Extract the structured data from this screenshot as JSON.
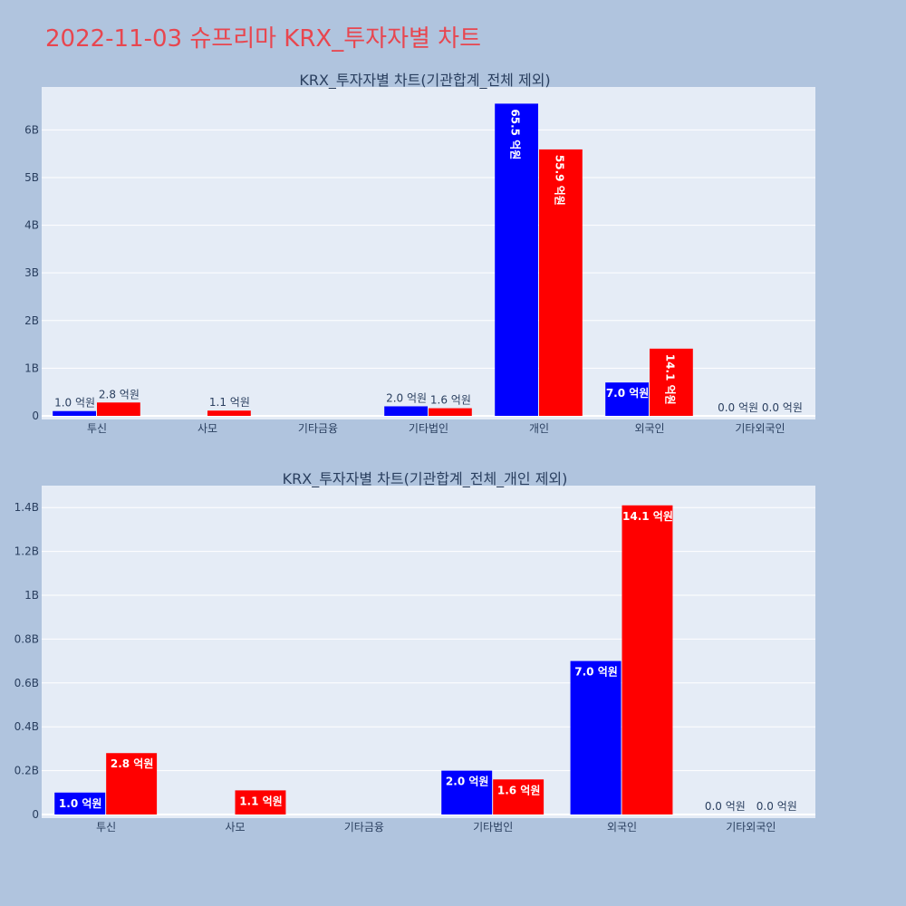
{
  "page": {
    "title": "2022-11-03 슈프리마 KRX_투자자별 차트",
    "colors": {
      "background": "#b0c4de",
      "plot_bg": "#e5ecf6",
      "title": "#e8464f",
      "sell": "#0000ff",
      "buy": "#ff0000"
    }
  },
  "chart_data": [
    {
      "type": "bar",
      "title": "KRX_투자자별 차트(기관합계_전체 제외)",
      "categories": [
        "투신",
        "사모",
        "기타금융",
        "기타법인",
        "개인",
        "외국인",
        "기타외국인"
      ],
      "series": [
        {
          "color": "#0000ff",
          "values": [
            100000000,
            0,
            0,
            200000000,
            6550000000,
            700000000,
            0
          ],
          "labels": [
            "1.0 억원",
            "",
            "",
            "2.0 억원",
            "65.5 억원",
            "7.0 억원",
            "0.0 억원"
          ]
        },
        {
          "color": "#ff0000",
          "values": [
            280000000,
            110000000,
            0,
            160000000,
            5590000000,
            1410000000,
            0
          ],
          "labels": [
            "2.8 억원",
            "1.1 억원",
            "",
            "1.6 억원",
            "55.9 억원",
            "14.1 억원",
            "0.0 억원"
          ]
        }
      ],
      "ylim": [
        0,
        6900000000
      ],
      "yticks": [
        0,
        1000000000,
        2000000000,
        3000000000,
        4000000000,
        5000000000,
        6000000000
      ],
      "ytick_labels": [
        "0",
        "1B",
        "2B",
        "3B",
        "4B",
        "5B",
        "6B"
      ],
      "xlabel": "",
      "ylabel": "",
      "grid": true
    },
    {
      "type": "bar",
      "title": "KRX_투자자별 차트(기관합계_전체_개인 제외)",
      "categories": [
        "투신",
        "사모",
        "기타금융",
        "기타법인",
        "외국인",
        "기타외국인"
      ],
      "series": [
        {
          "color": "#0000ff",
          "values": [
            100000000,
            0,
            0,
            200000000,
            700000000,
            0
          ],
          "labels": [
            "1.0 억원",
            "",
            "",
            "2.0 억원",
            "7.0 억원",
            "0.0 억원"
          ]
        },
        {
          "color": "#ff0000",
          "values": [
            280000000,
            110000000,
            0,
            160000000,
            1410000000,
            0
          ],
          "labels": [
            "2.8 억원",
            "1.1 억원",
            "",
            "1.6 억원",
            "14.1 억원",
            "0.0 억원"
          ]
        }
      ],
      "ylim": [
        0,
        1500000000
      ],
      "yticks": [
        0,
        200000000,
        400000000,
        600000000,
        800000000,
        1000000000,
        1200000000,
        1400000000
      ],
      "ytick_labels": [
        "0",
        "0.2B",
        "0.4B",
        "0.6B",
        "0.8B",
        "1B",
        "1.2B",
        "1.4B"
      ],
      "xlabel": "",
      "ylabel": "",
      "grid": true
    }
  ]
}
